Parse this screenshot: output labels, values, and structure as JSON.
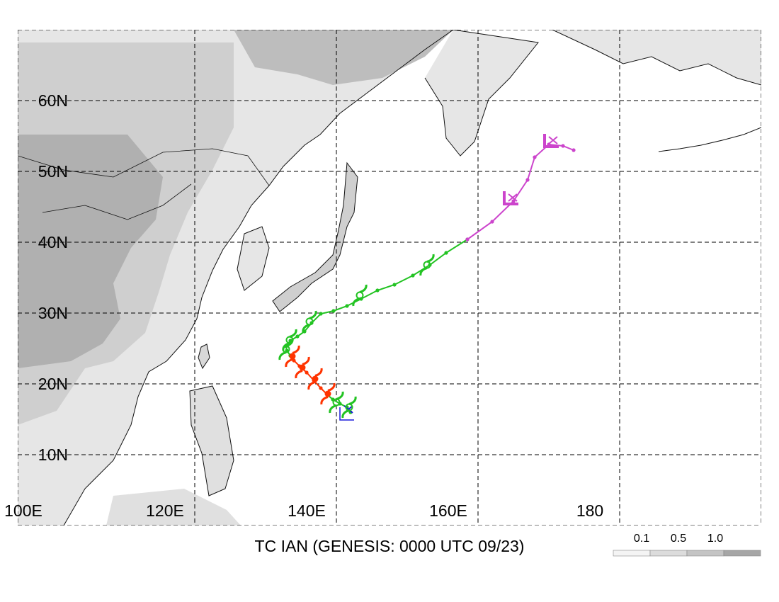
{
  "title": "TC IAN (GENESIS: 0000 UTC 09/23)",
  "map": {
    "lon_range": [
      100,
      205
    ],
    "lat_range": [
      0,
      70
    ],
    "lon_ticks": [
      {
        "lon": 100,
        "label": "100E"
      },
      {
        "lon": 120,
        "label": "120E"
      },
      {
        "lon": 140,
        "label": "140E"
      },
      {
        "lon": 160,
        "label": "160E"
      },
      {
        "lon": 180,
        "label": "180"
      }
    ],
    "lat_ticks": [
      {
        "lat": 10,
        "label": "10N"
      },
      {
        "lat": 20,
        "label": "20N"
      },
      {
        "lat": 30,
        "label": "30N"
      },
      {
        "lat": 40,
        "label": "40N"
      },
      {
        "lat": 50,
        "label": "50N"
      },
      {
        "lat": 60,
        "label": "60N"
      }
    ],
    "grid": "dashed"
  },
  "legend": {
    "labels": [
      "0.1",
      "0.5",
      "1.0"
    ],
    "colors": [
      "#f4f4f4",
      "#dcdcdc",
      "#c4c4c4",
      "#a6a6a6"
    ]
  },
  "colors": {
    "tropical_storm": "#22c322",
    "typhoon": "#ff3300",
    "extratropical": "#cc44cc",
    "genesis": "#1a1adb",
    "terrain_light": "#e6e6e6",
    "terrain_mid": "#cfcfcf",
    "terrain_dark": "#b0b0b0"
  },
  "chart_data": {
    "type": "track-map",
    "storm_name": "IAN",
    "genesis_time": "0000 UTC 09/23",
    "segments": [
      {
        "stage": "tropical-storm",
        "points": [
          [
            147.0,
            16.0
          ],
          [
            146.5,
            16.7
          ],
          [
            145.5,
            17.2
          ],
          [
            144.5,
            17.8
          ],
          [
            143.8,
            18.4
          ]
        ]
      },
      {
        "stage": "typhoon",
        "points": [
          [
            143.8,
            18.4
          ],
          [
            142.8,
            19.4
          ],
          [
            141.8,
            20.5
          ],
          [
            140.8,
            21.6
          ],
          [
            139.8,
            22.5
          ],
          [
            139.0,
            23.3
          ],
          [
            138.5,
            24.0
          ]
        ]
      },
      {
        "stage": "tropical-storm",
        "points": [
          [
            138.5,
            24.0
          ],
          [
            138.0,
            24.7
          ],
          [
            137.9,
            25.3
          ],
          [
            138.5,
            26.1
          ],
          [
            139.5,
            26.7
          ],
          [
            140.5,
            27.4
          ],
          [
            141.5,
            28.6
          ],
          [
            142.8,
            29.9
          ],
          [
            144.6,
            30.3
          ],
          [
            146.5,
            31.0
          ],
          [
            148.5,
            32.0
          ],
          [
            150.8,
            33.2
          ],
          [
            153.2,
            34.0
          ],
          [
            155.8,
            35.3
          ],
          [
            158.2,
            36.8
          ],
          [
            160.5,
            38.5
          ],
          [
            163.5,
            40.4
          ]
        ]
      },
      {
        "stage": "extratropical",
        "points": [
          [
            163.5,
            40.4
          ],
          [
            167.0,
            42.9
          ],
          [
            170.0,
            45.8
          ],
          [
            172.0,
            48.8
          ],
          [
            173.0,
            52.0
          ],
          [
            175.0,
            53.8
          ],
          [
            177.0,
            53.6
          ],
          [
            178.5,
            53.0
          ]
        ]
      }
    ],
    "symbols": [
      {
        "type": "genesis",
        "at": [
          146.5,
          15.7
        ]
      },
      {
        "type": "ts",
        "at": [
          146.8,
          16.7
        ]
      },
      {
        "type": "ts",
        "at": [
          145.0,
          17.4
        ]
      },
      {
        "type": "ty",
        "at": [
          143.8,
          18.6
        ]
      },
      {
        "type": "ty",
        "at": [
          142.0,
          20.7
        ]
      },
      {
        "type": "ty",
        "at": [
          140.2,
          22.3
        ]
      },
      {
        "type": "ty",
        "at": [
          138.8,
          23.9
        ]
      },
      {
        "type": "ts",
        "at": [
          137.9,
          24.9
        ]
      },
      {
        "type": "ts",
        "at": [
          138.4,
          26.2
        ]
      },
      {
        "type": "ts",
        "at": [
          141.2,
          28.8
        ]
      },
      {
        "type": "ts",
        "at": [
          148.3,
          32.5
        ]
      },
      {
        "type": "ts",
        "at": [
          157.8,
          36.8
        ]
      },
      {
        "type": "et",
        "at": [
          169.5,
          45.8
        ]
      },
      {
        "type": "et",
        "at": [
          175.2,
          53.9
        ]
      }
    ]
  }
}
